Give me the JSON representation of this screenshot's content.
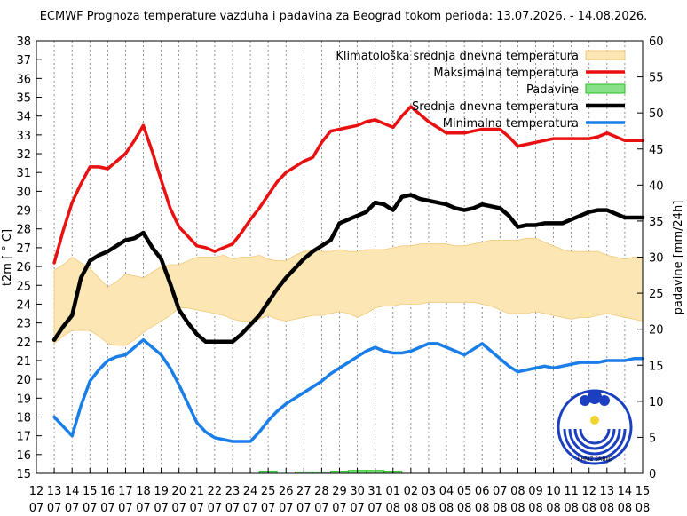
{
  "chart_data": {
    "type": "line",
    "title": "ECMWF Prognoza temperature vazduha i padavina za Beograd tokom perioda: 13.07.2026. - 14.08.2026.",
    "ylabel": "t2m [ ° C]",
    "y2label": "padavine [mm/24h]",
    "ylim": [
      15,
      38
    ],
    "y2lim": [
      0,
      60
    ],
    "yticks": [
      "15",
      "16",
      "17",
      "18",
      "19",
      "20",
      "21",
      "22",
      "23",
      "24",
      "25",
      "26",
      "27",
      "28",
      "29",
      "30",
      "31",
      "32",
      "33",
      "34",
      "35",
      "36",
      "37",
      "38"
    ],
    "y2ticks": [
      "0",
      "5",
      "10",
      "15",
      "20",
      "25",
      "30",
      "35",
      "40",
      "45",
      "50",
      "55",
      "60"
    ],
    "xticks": [
      {
        "day": "12",
        "month": "07"
      },
      {
        "day": "13",
        "month": "07"
      },
      {
        "day": "14",
        "month": "07"
      },
      {
        "day": "15",
        "month": "07"
      },
      {
        "day": "16",
        "month": "07"
      },
      {
        "day": "17",
        "month": "07"
      },
      {
        "day": "18",
        "month": "07"
      },
      {
        "day": "19",
        "month": "07"
      },
      {
        "day": "20",
        "month": "07"
      },
      {
        "day": "21",
        "month": "07"
      },
      {
        "day": "22",
        "month": "07"
      },
      {
        "day": "23",
        "month": "07"
      },
      {
        "day": "24",
        "month": "07"
      },
      {
        "day": "25",
        "month": "07"
      },
      {
        "day": "26",
        "month": "07"
      },
      {
        "day": "27",
        "month": "07"
      },
      {
        "day": "28",
        "month": "07"
      },
      {
        "day": "29",
        "month": "07"
      },
      {
        "day": "30",
        "month": "07"
      },
      {
        "day": "31",
        "month": "07"
      },
      {
        "day": "01",
        "month": "08"
      },
      {
        "day": "02",
        "month": "08"
      },
      {
        "day": "03",
        "month": "08"
      },
      {
        "day": "04",
        "month": "08"
      },
      {
        "day": "05",
        "month": "08"
      },
      {
        "day": "06",
        "month": "08"
      },
      {
        "day": "07",
        "month": "08"
      },
      {
        "day": "08",
        "month": "08"
      },
      {
        "day": "09",
        "month": "08"
      },
      {
        "day": "10",
        "month": "08"
      },
      {
        "day": "11",
        "month": "08"
      },
      {
        "day": "12",
        "month": "08"
      },
      {
        "day": "13",
        "month": "08"
      },
      {
        "day": "14",
        "month": "08"
      },
      {
        "day": "15",
        "month": "08"
      }
    ],
    "x": [
      1,
      1.5,
      2,
      2.5,
      3,
      3.5,
      4,
      4.5,
      5,
      5.5,
      6,
      6.5,
      7,
      7.5,
      8,
      8.5,
      9,
      9.5,
      10,
      10.5,
      11,
      11.5,
      12,
      12.5,
      13,
      13.5,
      14,
      14.5,
      15,
      15.5,
      16,
      16.5,
      17,
      17.5,
      18,
      18.5,
      19,
      19.5,
      20,
      20.5,
      21,
      21.5,
      22,
      22.5,
      23,
      23.5,
      24,
      24.5,
      25,
      25.5,
      26,
      26.5,
      27,
      27.5,
      28,
      28.5,
      29,
      29.5,
      30,
      30.5,
      31,
      31.5,
      32,
      32.5,
      33,
      33.5,
      34
    ],
    "climatology": {
      "name": "Klimatološka srednja dnevna temperatura",
      "color": "#fce6b4",
      "edge": "#f2c878",
      "upper": [
        25.8,
        26.1,
        26.5,
        26.2,
        25.9,
        25.4,
        24.9,
        25.2,
        25.6,
        25.5,
        25.4,
        25.7,
        26.0,
        26.1,
        26.1,
        26.3,
        26.5,
        26.5,
        26.5,
        26.6,
        26.4,
        26.5,
        26.5,
        26.6,
        26.4,
        26.3,
        26.3,
        26.6,
        26.8,
        26.9,
        26.8,
        26.8,
        26.9,
        26.8,
        26.8,
        26.9,
        26.9,
        26.9,
        27.0,
        27.1,
        27.1,
        27.2,
        27.2,
        27.2,
        27.2,
        27.1,
        27.1,
        27.2,
        27.3,
        27.4,
        27.4,
        27.4,
        27.4,
        27.5,
        27.5,
        27.3,
        27.1,
        26.9,
        26.8,
        26.8,
        26.8,
        26.8,
        26.6,
        26.5,
        26.4,
        26.5,
        26.5
      ],
      "lower": [
        21.9,
        22.3,
        22.6,
        22.6,
        22.6,
        22.3,
        21.9,
        21.8,
        21.8,
        22.1,
        22.5,
        22.8,
        23.1,
        23.4,
        23.8,
        23.8,
        23.7,
        23.6,
        23.5,
        23.4,
        23.2,
        23.1,
        23.1,
        23.2,
        23.4,
        23.2,
        23.1,
        23.2,
        23.3,
        23.4,
        23.4,
        23.5,
        23.6,
        23.5,
        23.3,
        23.5,
        23.8,
        23.9,
        23.9,
        24.0,
        24.0,
        24.0,
        24.1,
        24.1,
        24.1,
        24.1,
        24.1,
        24.1,
        24.0,
        23.9,
        23.7,
        23.5,
        23.5,
        23.5,
        23.6,
        23.5,
        23.4,
        23.3,
        23.2,
        23.3,
        23.3,
        23.4,
        23.5,
        23.4,
        23.3,
        23.2,
        23.1
      ]
    },
    "series": [
      {
        "name": "Maksimalna temperatura",
        "color": "#e81010",
        "width": 3.5,
        "values": [
          26.2,
          27.9,
          29.4,
          30.4,
          31.3,
          31.3,
          31.2,
          31.6,
          32.0,
          32.7,
          33.5,
          32.1,
          30.6,
          29.1,
          28.1,
          27.6,
          27.1,
          27.0,
          26.8,
          27.0,
          27.2,
          27.8,
          28.5,
          29.1,
          29.8,
          30.5,
          31.0,
          31.3,
          31.6,
          31.8,
          32.6,
          33.2,
          33.3,
          33.4,
          33.5,
          33.7,
          33.8,
          33.6,
          33.4,
          34.0,
          34.5,
          34.1,
          33.7,
          33.4,
          33.1,
          33.1,
          33.1,
          33.2,
          33.3,
          33.3,
          33.3,
          32.9,
          32.4,
          32.5,
          32.6,
          32.7,
          32.8,
          32.8,
          32.8,
          32.8,
          32.8,
          32.9,
          33.1,
          32.9,
          32.7,
          32.7,
          32.7
        ]
      },
      {
        "name": "Srednja dnevna temperatura",
        "color": "#000000",
        "width": 4.5,
        "values": [
          22.1,
          22.8,
          23.4,
          25.4,
          26.3,
          26.6,
          26.8,
          27.1,
          27.4,
          27.5,
          27.8,
          27.0,
          26.4,
          25.1,
          23.7,
          23.0,
          22.4,
          22.0,
          22.0,
          22.0,
          22.0,
          22.4,
          22.9,
          23.4,
          24.1,
          24.8,
          25.4,
          25.9,
          26.4,
          26.8,
          27.1,
          27.4,
          28.3,
          28.5,
          28.7,
          28.9,
          29.4,
          29.3,
          29.0,
          29.7,
          29.8,
          29.6,
          29.5,
          29.4,
          29.3,
          29.1,
          29.0,
          29.1,
          29.3,
          29.2,
          29.1,
          28.7,
          28.1,
          28.2,
          28.2,
          28.3,
          28.3,
          28.3,
          28.5,
          28.7,
          28.9,
          29.0,
          29.0,
          28.8,
          28.6,
          28.6,
          28.6
        ]
      },
      {
        "name": "Minimalna temperatura",
        "color": "#1a7ee8",
        "width": 3.5,
        "values": [
          18.0,
          17.5,
          17.0,
          18.6,
          19.9,
          20.5,
          21.0,
          21.2,
          21.3,
          21.7,
          22.1,
          21.7,
          21.3,
          20.6,
          19.7,
          18.7,
          17.7,
          17.2,
          16.9,
          16.8,
          16.7,
          16.7,
          16.7,
          17.2,
          17.8,
          18.3,
          18.7,
          19.0,
          19.3,
          19.6,
          19.9,
          20.3,
          20.6,
          20.9,
          21.2,
          21.5,
          21.7,
          21.5,
          21.4,
          21.4,
          21.5,
          21.7,
          21.9,
          21.9,
          21.7,
          21.5,
          21.3,
          21.6,
          21.9,
          21.5,
          21.1,
          20.7,
          20.4,
          20.5,
          20.6,
          20.7,
          20.6,
          20.7,
          20.8,
          20.9,
          20.9,
          20.9,
          21.0,
          21.0,
          21.0,
          21.1,
          21.1
        ]
      }
    ],
    "precipitation": {
      "name": "Padavine",
      "color": "#88e088",
      "edge": "#22c222",
      "x": [
        13,
        14,
        15,
        16,
        17,
        18,
        19,
        20
      ],
      "values": [
        0.3,
        0,
        0.2,
        0.2,
        0.3,
        0.4,
        0.4,
        0.3
      ]
    },
    "legend": {
      "placement": "top-right",
      "order": [
        "Klimatološka srednja dnevna temperatura",
        "Maksimalna temperatura",
        "Padavine",
        "Srednja dnevna temperatura",
        "Minimalna temperatura"
      ]
    },
    "grid": "vertical-dashed",
    "logo_text": "RHMZ SRBIJE"
  }
}
